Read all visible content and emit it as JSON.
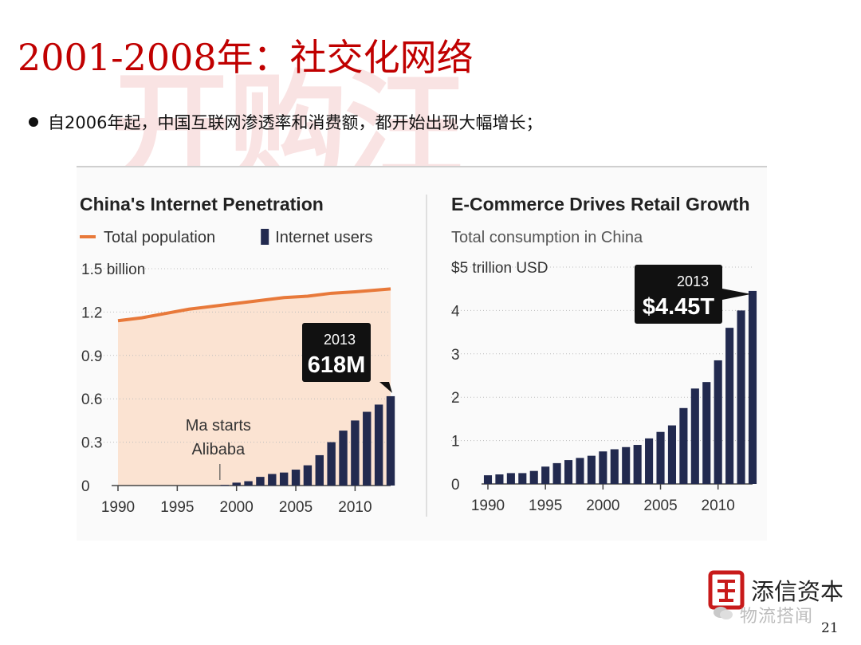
{
  "slide": {
    "title": "2001-2008年：社交化网络",
    "watermark": "开购汪",
    "bullet": "自2006年起，中国互联网渗透率和消费额，都开始出现大幅增长；",
    "page_number": "21"
  },
  "logo": {
    "name": "添信资本",
    "overlay": "物流搭闻",
    "mark_icon": "seal-logo-icon"
  },
  "colors": {
    "title": "#c00000",
    "bar": "#222a4f",
    "population_line": "#e8793a",
    "population_fill": "#fbe3d2",
    "callout_bg": "#111111"
  },
  "chart_data": [
    {
      "type": "bar",
      "title": "China's Internet Penetration",
      "legend": [
        {
          "label": "Total population",
          "kind": "line",
          "color": "#e8793a"
        },
        {
          "label": "Internet users",
          "kind": "bar",
          "color": "#222a4f"
        }
      ],
      "ylabel": "",
      "yunit_label": "1.5 billion",
      "ylim": [
        0,
        1.5
      ],
      "yticks": [
        {
          "value": 0,
          "label": "0"
        },
        {
          "value": 0.3,
          "label": "0.3"
        },
        {
          "value": 0.6,
          "label": "0.6"
        },
        {
          "value": 0.9,
          "label": "0.9"
        },
        {
          "value": 1.2,
          "label": "1.2"
        },
        {
          "value": 1.5,
          "label": "1.5 billion"
        }
      ],
      "xlim": [
        1990,
        2013
      ],
      "xticks": [
        "1990",
        "1995",
        "2000",
        "2005",
        "2010"
      ],
      "grid": true,
      "series": [
        {
          "name": "Total population",
          "kind": "area-line",
          "x": [
            1990,
            1992,
            1994,
            1996,
            1998,
            2000,
            2002,
            2004,
            2006,
            2008,
            2010,
            2013
          ],
          "values": [
            1.14,
            1.16,
            1.19,
            1.22,
            1.24,
            1.26,
            1.28,
            1.3,
            1.31,
            1.33,
            1.34,
            1.36
          ]
        },
        {
          "name": "Internet users",
          "kind": "bar",
          "x": [
            1999,
            2000,
            2001,
            2002,
            2003,
            2004,
            2005,
            2006,
            2007,
            2008,
            2009,
            2010,
            2011,
            2012,
            2013
          ],
          "values": [
            0.004,
            0.02,
            0.03,
            0.06,
            0.08,
            0.09,
            0.11,
            0.14,
            0.21,
            0.3,
            0.38,
            0.45,
            0.51,
            0.56,
            0.618
          ]
        }
      ],
      "annotations": [
        {
          "text_lines": [
            "Ma starts",
            "Alibaba"
          ],
          "x": 1999
        },
        {
          "text_lines": [
            "2013",
            "618M"
          ],
          "x": 2013,
          "y": 0.618,
          "style": "callout"
        }
      ]
    },
    {
      "type": "bar",
      "title": "E-Commerce Drives Retail Growth",
      "subtitle": "Total consumption in China",
      "ylabel": "",
      "yunit_label": "$5 trillion USD",
      "ylim": [
        0,
        5
      ],
      "yticks": [
        {
          "value": 0,
          "label": "0"
        },
        {
          "value": 1,
          "label": "1"
        },
        {
          "value": 2,
          "label": "2"
        },
        {
          "value": 3,
          "label": "3"
        },
        {
          "value": 4,
          "label": "4"
        },
        {
          "value": 5,
          "label": "$5 trillion USD"
        }
      ],
      "xlim": [
        1990,
        2013
      ],
      "xticks": [
        "1990",
        "1995",
        "2000",
        "2005",
        "2010"
      ],
      "grid": true,
      "series": [
        {
          "name": "Total consumption",
          "kind": "bar",
          "x": [
            1990,
            1991,
            1992,
            1993,
            1994,
            1995,
            1996,
            1997,
            1998,
            1999,
            2000,
            2001,
            2002,
            2003,
            2004,
            2005,
            2006,
            2007,
            2008,
            2009,
            2010,
            2011,
            2012,
            2013
          ],
          "values": [
            0.2,
            0.22,
            0.25,
            0.25,
            0.3,
            0.4,
            0.48,
            0.55,
            0.6,
            0.65,
            0.75,
            0.8,
            0.85,
            0.9,
            1.05,
            1.2,
            1.35,
            1.75,
            2.2,
            2.35,
            2.85,
            3.6,
            4.0,
            4.45
          ]
        }
      ],
      "annotations": [
        {
          "text_lines": [
            "2013",
            "$4.45T"
          ],
          "x": 2013,
          "y": 4.45,
          "style": "callout"
        }
      ]
    }
  ]
}
